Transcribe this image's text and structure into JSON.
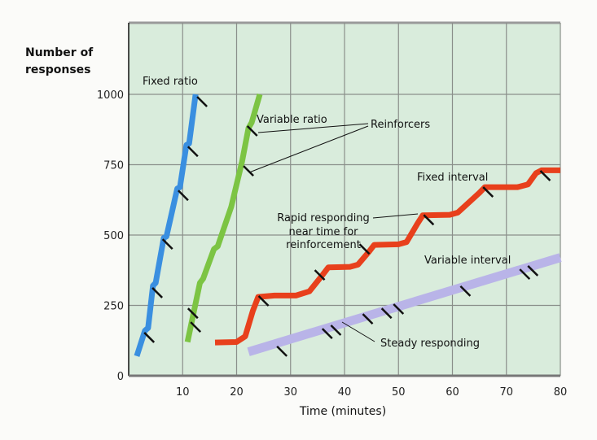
{
  "chart_data": {
    "type": "line",
    "title": "",
    "xlabel": "Time (minutes)",
    "ylabel": "Number of responses",
    "ylabel_lines": [
      "Number of",
      "responses"
    ],
    "xlim": [
      0,
      80
    ],
    "ylim": [
      0,
      1300
    ],
    "xticks": [
      10,
      20,
      30,
      40,
      50,
      60,
      70,
      80
    ],
    "yticks": [
      0,
      250,
      500,
      750,
      1000
    ],
    "grid": true,
    "colors": {
      "background": "#d9ecdc",
      "grid": "#8a8f8a",
      "marks": "#111111"
    },
    "series": [
      {
        "name": "Fixed ratio",
        "color": "#3a8fe0",
        "points": [
          [
            1.5,
            70
          ],
          [
            3,
            160
          ],
          [
            3.6,
            170
          ],
          [
            4.5,
            320
          ],
          [
            5,
            330
          ],
          [
            6.5,
            490
          ],
          [
            7,
            495
          ],
          [
            9,
            665
          ],
          [
            9.5,
            670
          ],
          [
            10.7,
            820
          ],
          [
            11.2,
            825
          ],
          [
            12.4,
            1000
          ]
        ]
      },
      {
        "name": "Variable ratio",
        "color": "#7cc443",
        "points": [
          [
            10.9,
            120
          ],
          [
            13.2,
            330
          ],
          [
            13.8,
            345
          ],
          [
            15.8,
            450
          ],
          [
            16.5,
            460
          ],
          [
            19,
            600
          ],
          [
            21,
            760
          ],
          [
            22.2,
            880
          ],
          [
            22.8,
            900
          ],
          [
            24.3,
            1000
          ]
        ]
      },
      {
        "name": "Fixed interval",
        "color": "#e8401c",
        "points": [
          [
            16,
            118
          ],
          [
            20,
            120
          ],
          [
            21.6,
            140
          ],
          [
            23,
            230
          ],
          [
            24,
            280
          ],
          [
            27,
            285
          ],
          [
            31,
            285
          ],
          [
            33.5,
            300
          ],
          [
            36,
            360
          ],
          [
            37,
            385
          ],
          [
            41,
            387
          ],
          [
            42.5,
            395
          ],
          [
            44.5,
            440
          ],
          [
            45.5,
            465
          ],
          [
            50,
            467
          ],
          [
            51.5,
            475
          ],
          [
            53.5,
            540
          ],
          [
            54.5,
            570
          ],
          [
            59.5,
            572
          ],
          [
            61,
            580
          ],
          [
            65,
            650
          ],
          [
            66,
            670
          ],
          [
            72,
            670
          ],
          [
            74,
            680
          ],
          [
            75.5,
            720
          ],
          [
            76.5,
            730
          ],
          [
            80,
            730
          ]
        ]
      },
      {
        "name": "Variable interval",
        "color": "#b9b4e8",
        "points": [
          [
            22.2,
            85
          ],
          [
            80,
            420
          ]
        ]
      }
    ],
    "reinforcers": {
      "Fixed ratio": [
        [
          3.8,
          136
        ],
        [
          5.3,
          295
        ],
        [
          7.2,
          468
        ],
        [
          10.1,
          641
        ],
        [
          11.9,
          797
        ],
        [
          13.6,
          974
        ]
      ],
      "Variable ratio": [
        [
          11.9,
          222
        ],
        [
          12.4,
          173
        ],
        [
          22.2,
          728
        ],
        [
          22.9,
          870
        ]
      ],
      "Fixed interval": [
        [
          25,
          266
        ],
        [
          35.4,
          358
        ],
        [
          43.7,
          450
        ],
        [
          55.6,
          554
        ],
        [
          66.6,
          653
        ],
        [
          77.2,
          711
        ]
      ],
      "Variable interval": [
        [
          28.4,
          87
        ],
        [
          36.8,
          150
        ],
        [
          38.4,
          162
        ],
        [
          44.3,
          202
        ],
        [
          47.8,
          222
        ],
        [
          50,
          237
        ],
        [
          62.4,
          301
        ],
        [
          73.4,
          361
        ],
        [
          74.9,
          373
        ]
      ]
    },
    "annotations": {
      "fixed_ratio": "Fixed ratio",
      "variable_ratio": "Variable ratio",
      "reinforcers": "Reinforcers",
      "fixed_interval": "Fixed interval",
      "rapid_lines": [
        "Rapid responding",
        "near time for",
        "reinforcement"
      ],
      "variable_interval": "Variable interval",
      "steady": "Steady responding"
    }
  }
}
